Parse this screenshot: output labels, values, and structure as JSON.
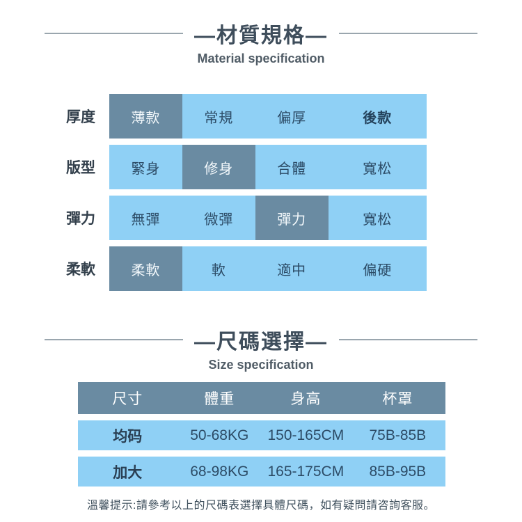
{
  "colors": {
    "cell_light_blue": "#8fd0f5",
    "cell_selected_slate": "#6a8ba2",
    "header_bar_slate": "#6a8ba2",
    "title_text": "#3e4d5b",
    "cell_text_navy": "#2c4b66",
    "selected_cell_text": "#f4f9fc",
    "divider_line": "#9aa6ae",
    "background": "#ffffff"
  },
  "material_section": {
    "title": "—材質規格—",
    "subtitle": "Material specification",
    "rows": [
      {
        "label": "厚度",
        "selected_index": 0,
        "cells": [
          {
            "text": "薄款",
            "selected": true
          },
          {
            "text": "常規",
            "selected": false
          },
          {
            "text": "偏厚",
            "selected": false
          },
          {
            "text": "後款",
            "selected": false,
            "bold": true
          }
        ]
      },
      {
        "label": "版型",
        "selected_index": 1,
        "cells": [
          {
            "text": "緊身",
            "selected": false
          },
          {
            "text": "修身",
            "selected": true
          },
          {
            "text": "合體",
            "selected": false
          },
          {
            "text": "寬松",
            "selected": false
          }
        ]
      },
      {
        "label": "彈力",
        "selected_index": 2,
        "cells": [
          {
            "text": "無彈",
            "selected": false
          },
          {
            "text": "微彈",
            "selected": false
          },
          {
            "text": "彈力",
            "selected": true
          },
          {
            "text": "寬松",
            "selected": false
          }
        ]
      },
      {
        "label": "柔軟",
        "selected_index": 0,
        "cells": [
          {
            "text": "柔軟",
            "selected": true
          },
          {
            "text": "軟",
            "selected": false
          },
          {
            "text": "適中",
            "selected": false
          },
          {
            "text": "偏硬",
            "selected": false
          }
        ]
      }
    ]
  },
  "size_section": {
    "title": "—尺碼選擇—",
    "subtitle": "Size specification",
    "table": {
      "headers": [
        "尺寸",
        "體重",
        "身高",
        "杯罩"
      ],
      "rows": [
        {
          "size": "均码",
          "weight": "50-68KG",
          "height": "150-165CM",
          "cup": "75B-85B"
        },
        {
          "size": "加大",
          "weight": "68-98KG",
          "height": "165-175CM",
          "cup": "85B-95B"
        }
      ]
    }
  },
  "footer": {
    "note": "溫馨提示:請參考以上的尺碼表選擇具體尺碼，如有疑問請咨詢客服。"
  }
}
